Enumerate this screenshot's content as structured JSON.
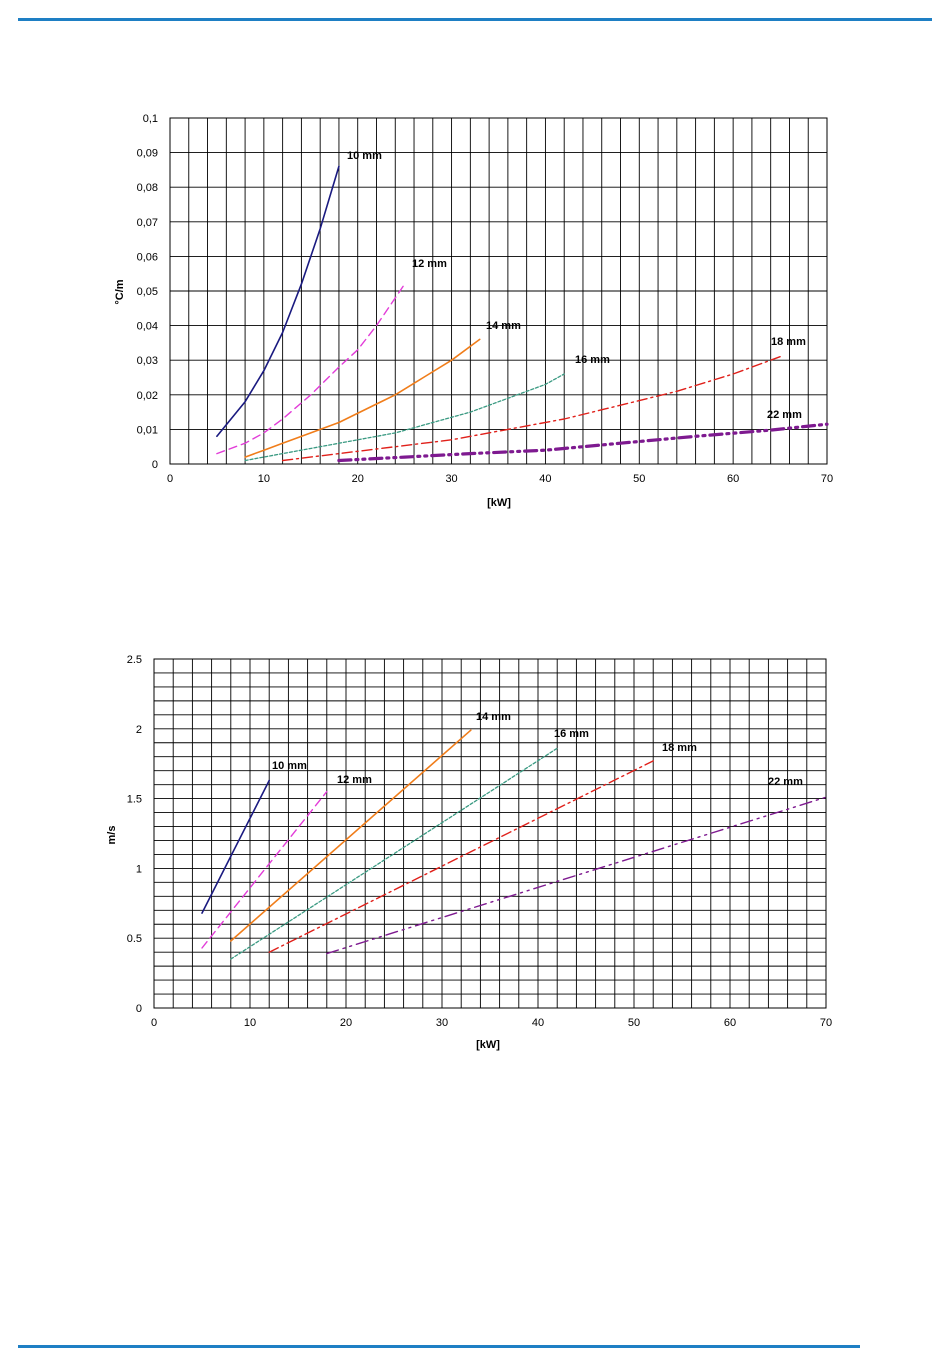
{
  "chart_data": [
    {
      "type": "line",
      "title": "",
      "xlabel": "[kW]",
      "ylabel": "°C/m",
      "xlim": [
        0,
        70
      ],
      "ylim": [
        0,
        0.1
      ],
      "grid": true,
      "x_ticks": [
        "0",
        "10",
        "20",
        "30",
        "40",
        "50",
        "60",
        "70"
      ],
      "y_ticks": [
        "0",
        "0,01",
        "0,02",
        "0,03",
        "0,04",
        "0,05",
        "0,06",
        "0,07",
        "0,08",
        "0,09",
        "0,1"
      ],
      "series": [
        {
          "name": "10 mm",
          "color": "#1a1a80",
          "x": [
            5,
            8,
            10,
            12,
            14,
            16,
            18
          ],
          "y": [
            0.008,
            0.018,
            0.027,
            0.038,
            0.052,
            0.068,
            0.086
          ]
        },
        {
          "name": "12 mm",
          "color": "#e23cd8",
          "x": [
            5,
            8,
            10,
            12,
            15,
            18,
            20,
            22,
            25
          ],
          "y": [
            0.003,
            0.006,
            0.009,
            0.013,
            0.02,
            0.028,
            0.033,
            0.04,
            0.052
          ]
        },
        {
          "name": "14 mm",
          "color": "#f07d1a",
          "x": [
            8,
            10,
            12,
            15,
            18,
            21,
            24,
            27,
            30,
            33
          ],
          "y": [
            0.002,
            0.004,
            0.006,
            0.009,
            0.012,
            0.016,
            0.02,
            0.025,
            0.03,
            0.036
          ]
        },
        {
          "name": "16 mm",
          "color": "#3a9a82",
          "x": [
            8,
            12,
            16,
            20,
            24,
            28,
            32,
            36,
            40,
            42
          ],
          "y": [
            0.001,
            0.003,
            0.005,
            0.007,
            0.009,
            0.012,
            0.015,
            0.019,
            0.023,
            0.026
          ]
        },
        {
          "name": "18 mm",
          "color": "#e0201a",
          "x": [
            12,
            18,
            24,
            30,
            36,
            42,
            48,
            54,
            60,
            65
          ],
          "y": [
            0.001,
            0.003,
            0.005,
            0.007,
            0.01,
            0.013,
            0.017,
            0.021,
            0.026,
            0.031
          ]
        },
        {
          "name": "22 mm",
          "color": "#7e1a90",
          "x": [
            18,
            25,
            32,
            40,
            48,
            56,
            64,
            70
          ],
          "y": [
            0.001,
            0.002,
            0.003,
            0.004,
            0.006,
            0.008,
            0.0098,
            0.0115
          ]
        }
      ]
    },
    {
      "type": "line",
      "title": "",
      "xlabel": "[kW]",
      "ylabel": "m/s",
      "xlim": [
        0,
        70
      ],
      "ylim": [
        0,
        2.5
      ],
      "grid": true,
      "x_ticks": [
        "0",
        "10",
        "20",
        "30",
        "40",
        "50",
        "60",
        "70"
      ],
      "y_ticks": [
        "0",
        "0.5",
        "1",
        "1.5",
        "2",
        "2.5"
      ],
      "series": [
        {
          "name": "10 mm",
          "color": "#1a1a80",
          "x": [
            5,
            12
          ],
          "y": [
            0.68,
            1.63
          ]
        },
        {
          "name": "12 mm",
          "color": "#e23cd8",
          "x": [
            5,
            18
          ],
          "y": [
            0.43,
            1.55
          ]
        },
        {
          "name": "14 mm",
          "color": "#f07d1a",
          "x": [
            8,
            33
          ],
          "y": [
            0.48,
            1.99
          ]
        },
        {
          "name": "16 mm",
          "color": "#3a9a82",
          "x": [
            8,
            42
          ],
          "y": [
            0.35,
            1.86
          ]
        },
        {
          "name": "18 mm",
          "color": "#e0201a",
          "x": [
            12,
            52
          ],
          "y": [
            0.4,
            1.77
          ]
        },
        {
          "name": "22 mm",
          "color": "#7e1a90",
          "x": [
            18,
            70
          ],
          "y": [
            0.39,
            1.51
          ]
        }
      ]
    }
  ]
}
